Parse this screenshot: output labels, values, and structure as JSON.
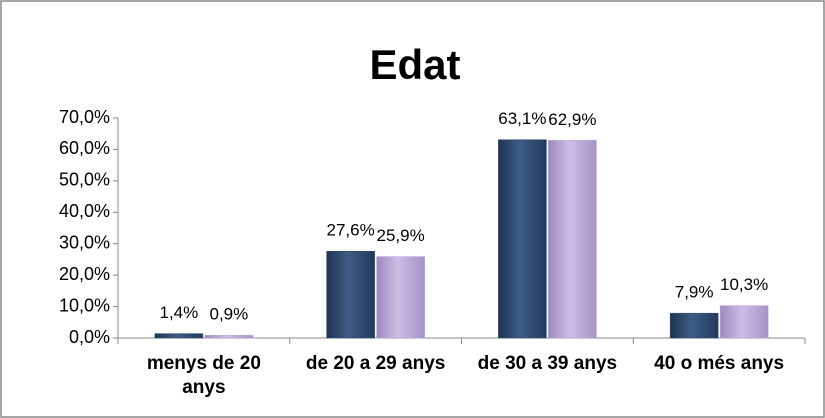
{
  "chart_data": {
    "type": "bar",
    "title": "Edat",
    "categories": [
      "menys de 20 anys",
      "de 20 a 29 anys",
      "de 30 a 39 anys",
      "40 o més anys"
    ],
    "series": [
      {
        "color": "#2f4b70",
        "values": [
          1.4,
          27.6,
          63.1,
          7.9
        ],
        "value_labels": [
          "1,4%",
          "27,6%",
          "63,1%",
          "7,9%"
        ]
      },
      {
        "color": "#b7a5d3",
        "values": [
          0.9,
          25.9,
          62.9,
          10.3
        ],
        "value_labels": [
          "0,9%",
          "25,9%",
          "62,9%",
          "10,3%"
        ]
      }
    ],
    "ylim": [
      0,
      70
    ],
    "yticks": [
      {
        "value": 0,
        "label": "0,0%"
      },
      {
        "value": 10,
        "label": "10,0%"
      },
      {
        "value": 20,
        "label": "20,0%"
      },
      {
        "value": 30,
        "label": "30,0%"
      },
      {
        "value": 40,
        "label": "40,0%"
      },
      {
        "value": 50,
        "label": "50,0%"
      },
      {
        "value": 60,
        "label": "60,0%"
      },
      {
        "value": 70,
        "label": "70,0%"
      }
    ],
    "grid": false
  }
}
